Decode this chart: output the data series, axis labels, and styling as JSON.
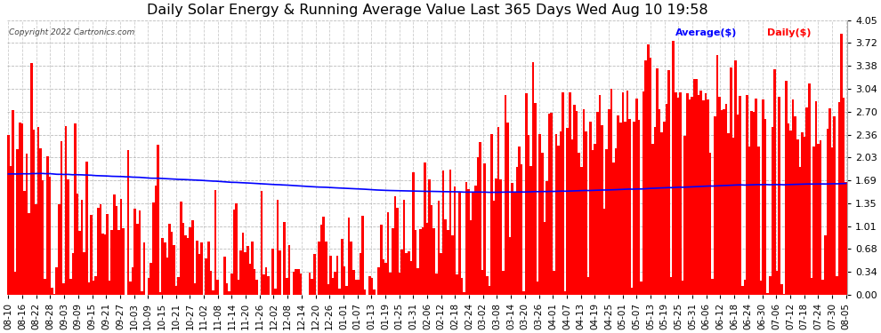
{
  "title": "Daily Solar Energy & Running Average Value Last 365 Days Wed Aug 10 19:58",
  "copyright": "Copyright 2022 Cartronics.com",
  "legend_avg": "Average($)",
  "legend_daily": "Daily($)",
  "bar_color": "#FF0000",
  "avg_line_color": "#0000FF",
  "bg_color": "#FFFFFF",
  "grid_color": "#AAAAAA",
  "ylim": [
    0.0,
    4.05
  ],
  "yticks": [
    0.0,
    0.34,
    0.68,
    1.01,
    1.35,
    1.69,
    2.03,
    2.36,
    2.7,
    3.04,
    3.38,
    3.72,
    4.05
  ],
  "title_fontsize": 11.5,
  "tick_fontsize": 7.5,
  "x_labels": [
    "08-10",
    "08-16",
    "08-22",
    "08-28",
    "09-03",
    "09-09",
    "09-15",
    "09-21",
    "09-27",
    "10-03",
    "10-09",
    "10-15",
    "10-21",
    "10-27",
    "11-02",
    "11-08",
    "11-14",
    "11-20",
    "11-26",
    "12-02",
    "12-08",
    "12-14",
    "12-20",
    "12-26",
    "01-01",
    "01-07",
    "01-13",
    "01-19",
    "01-25",
    "01-31",
    "02-06",
    "02-12",
    "02-18",
    "02-24",
    "03-02",
    "03-08",
    "03-14",
    "03-20",
    "03-26",
    "04-01",
    "04-07",
    "04-13",
    "04-19",
    "04-25",
    "05-01",
    "05-07",
    "05-13",
    "05-19",
    "05-25",
    "05-31",
    "06-06",
    "06-12",
    "06-18",
    "06-24",
    "06-30",
    "07-06",
    "07-12",
    "07-18",
    "07-24",
    "07-30",
    "08-05"
  ],
  "n_days": 365,
  "target_avg": 1.75
}
